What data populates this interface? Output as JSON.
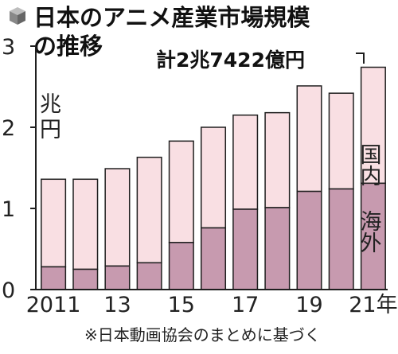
{
  "title_line1": "日本のアニメ産業市場規模",
  "title_line2": "の推移",
  "unit_line1": "兆",
  "unit_line2": "円",
  "total_label": "計2兆7422億円",
  "source_note": "※日本動画協会のまとめに基づく",
  "colors": {
    "domestic": "#f9dfe3",
    "overseas": "#c79aaf",
    "edge": "#1f1f1f",
    "title_icon": "#888888"
  },
  "chart_data": {
    "type": "bar",
    "stacked": true,
    "title": "日本のアニメ産業市場規模の推移",
    "ylabel": "兆円",
    "ylim": [
      0,
      3
    ],
    "yticks": [
      "0",
      "1",
      "2",
      "3"
    ],
    "categories": [
      "2011",
      "2012",
      "2013",
      "2014",
      "2015",
      "2016",
      "2017",
      "2018",
      "2019",
      "2020",
      "2021"
    ],
    "x_tick_labels": [
      "2011",
      "",
      "13",
      "",
      "15",
      "",
      "17",
      "",
      "19",
      "",
      "21年"
    ],
    "series": [
      {
        "name": "海外",
        "values": [
          0.28,
          0.25,
          0.29,
          0.33,
          0.58,
          0.76,
          0.99,
          1.01,
          1.21,
          1.24,
          1.31
        ]
      },
      {
        "name": "国内",
        "values": [
          1.08,
          1.11,
          1.2,
          1.3,
          1.25,
          1.24,
          1.16,
          1.17,
          1.3,
          1.18,
          1.43
        ]
      }
    ],
    "grid": false,
    "legend": "inline-right"
  }
}
